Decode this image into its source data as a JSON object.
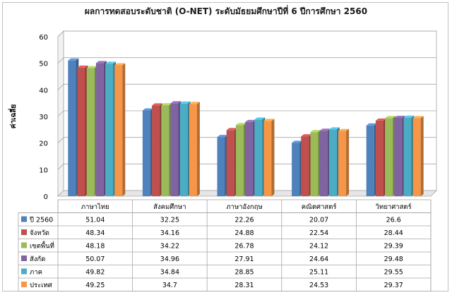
{
  "chart_data": {
    "type": "bar",
    "title": "ผลการทดสอบระดับชาติ (O-NET) ระดับมัธยมศึกษาปีที่ 6 ปีการศึกษา 2560",
    "ylabel": "ค่าเฉลี่ย",
    "xlabel": "",
    "ylim": [
      0,
      60
    ],
    "yticks": [
      "0",
      "10",
      "20",
      "30",
      "40",
      "50",
      "60"
    ],
    "grid": true,
    "style": "3d-clustered",
    "categories": [
      "ภาษาไทย",
      "สังคมศึกษา",
      "ภาษาอังกฤษ",
      "คณิตศาสตร์",
      "วิทยาศาสตร์"
    ],
    "series": [
      {
        "name": "ปี 2560",
        "color": "#4f81bd",
        "values": [
          51.04,
          32.25,
          22.26,
          20.07,
          26.6
        ],
        "labels": [
          "51.04",
          "32.25",
          "22.26",
          "20.07",
          "26.6"
        ]
      },
      {
        "name": "จังหวัด",
        "color": "#c0504d",
        "values": [
          48.34,
          34.16,
          24.88,
          22.54,
          28.44
        ],
        "labels": [
          "48.34",
          "34.16",
          "24.88",
          "22.54",
          "28.44"
        ]
      },
      {
        "name": "เขตพื้นที่",
        "color": "#9bbb59",
        "values": [
          48.18,
          34.22,
          26.78,
          24.12,
          29.39
        ],
        "labels": [
          "48.18",
          "34.22",
          "26.78",
          "24.12",
          "29.39"
        ]
      },
      {
        "name": "สังกัด",
        "color": "#8064a2",
        "values": [
          50.07,
          34.96,
          27.91,
          24.64,
          29.48
        ],
        "labels": [
          "50.07",
          "34.96",
          "27.91",
          "24.64",
          "29.48"
        ]
      },
      {
        "name": "ภาค",
        "color": "#4bacc6",
        "values": [
          49.82,
          34.84,
          28.85,
          25.11,
          29.55
        ],
        "labels": [
          "49.82",
          "34.84",
          "28.85",
          "25.11",
          "29.55"
        ]
      },
      {
        "name": "ประเทศ",
        "color": "#f79646",
        "values": [
          49.25,
          34.7,
          28.31,
          24.53,
          29.37
        ],
        "labels": [
          "49.25",
          "34.7",
          "28.31",
          "24.53",
          "29.37"
        ]
      }
    ]
  }
}
